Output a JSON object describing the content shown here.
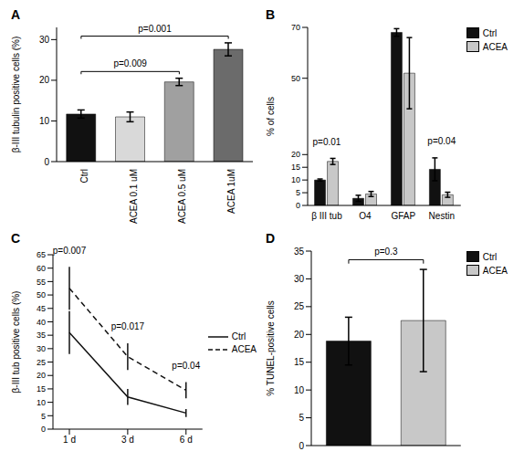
{
  "chart_data": [
    {
      "type": "bar",
      "title": "A",
      "categories": [
        "Ctrl",
        "ACEA 0.1 uM",
        "ACEA 0.5 uM",
        "ACEA 1uM"
      ],
      "values": [
        11.7,
        11,
        19.6,
        27.6
      ],
      "errors": [
        1,
        1.2,
        0.9,
        1.6
      ],
      "colors": [
        "#111111",
        "#d9d9d9",
        "#a0a0a0",
        "#6b6b6b"
      ],
      "y_label": "β-III tubulin positive cells (%)",
      "ylim": [
        0,
        33
      ],
      "yticks": [
        0,
        10,
        20,
        30
      ],
      "annotations": [
        {
          "text": "p=0.009",
          "from": "Ctrl",
          "to": "ACEA 0.5 uM"
        },
        {
          "text": "p=0.001",
          "from": "Ctrl",
          "to": "ACEA 1uM"
        }
      ]
    },
    {
      "type": "bar",
      "title": "B",
      "categories": [
        "β III tub",
        "O4",
        "GFAP",
        "Nestin"
      ],
      "series": [
        {
          "name": "Ctrl",
          "color": "#111111",
          "values": [
            10,
            2.8,
            68,
            14.2
          ],
          "errors": [
            0.4,
            1.2,
            1.5,
            4.5
          ]
        },
        {
          "name": "ACEA",
          "color": "#c8c8c8",
          "values": [
            17.3,
            4.5,
            52,
            4.2
          ],
          "errors": [
            1.2,
            1,
            14,
            1
          ]
        }
      ],
      "y_label": "% of cells",
      "ylim": [
        0,
        70
      ],
      "yticks": [
        0,
        5,
        10,
        15,
        20,
        50,
        70
      ],
      "legend": "top right",
      "annotations": [
        {
          "text": "p=0.01",
          "from": "β III tub",
          "to": "β III tub"
        },
        {
          "text": "p=0.04",
          "from": "Nestin",
          "to": "Nestin"
        }
      ]
    },
    {
      "type": "line",
      "title": "C",
      "categories": [
        "1 d",
        "3 d",
        "6 d"
      ],
      "series": [
        {
          "name": "Ctrl",
          "color": "#111111",
          "line_style": "solid",
          "values": [
            36,
            12,
            6
          ],
          "errors": [
            8,
            3,
            1.5
          ]
        },
        {
          "name": "ACEA",
          "color": "#111111",
          "line_style": "dashed",
          "values": [
            52.5,
            27,
            14.5
          ],
          "errors": [
            8,
            5,
            3
          ]
        }
      ],
      "y_label": "β-III tub positive cells (%)",
      "ylim": [
        0,
        65
      ],
      "yticks": [
        0,
        5,
        10,
        15,
        20,
        25,
        30,
        35,
        40,
        45,
        50,
        55,
        60,
        65
      ],
      "legend": "right",
      "annotations": [
        {
          "text": "p=0.007",
          "at": "1 d"
        },
        {
          "text": "p=0.017",
          "at": "3 d"
        },
        {
          "text": "p=0.04",
          "at": "6 d"
        }
      ]
    },
    {
      "type": "bar",
      "title": "D",
      "categories": [
        "Ctrl",
        "ACEA"
      ],
      "values": [
        18.8,
        22.5
      ],
      "errors": [
        4.3,
        9.2
      ],
      "colors": [
        "#111111",
        "#c8c8c8"
      ],
      "y_label": "% TUNEL-positive cells",
      "ylim": [
        0,
        35
      ],
      "yticks": [
        0,
        5,
        10,
        15,
        20,
        25,
        30,
        35
      ],
      "legend": "top right",
      "tick_labels": "y",
      "annotations": [
        {
          "text": "p=0.3",
          "from": "Ctrl",
          "to": "ACEA"
        }
      ]
    }
  ]
}
